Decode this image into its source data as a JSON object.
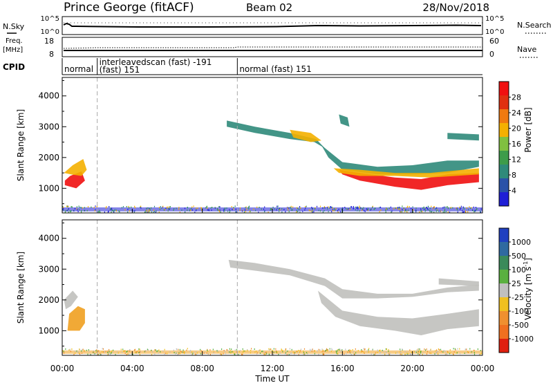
{
  "header": {
    "station": "Prince George (fitACF)",
    "beam": "Beam 02",
    "date": "28/Nov/2018"
  },
  "summary_panels": {
    "nsky_label": "N.Sky",
    "nsky_ticks": [
      "10^5",
      "10^0"
    ],
    "nsearch_label": "N.Search",
    "freq_label": "Freq.",
    "freq_unit": "[MHz]",
    "freq_ticks": [
      "18",
      "8"
    ],
    "nave_label": "Nave",
    "nave_ticks": [
      "60",
      "0"
    ],
    "cpid_label": "CPID"
  },
  "cpid_segments": [
    {
      "label": "normal",
      "line2": "",
      "start_hour": 0.0,
      "end_hour": 2.0
    },
    {
      "label": "interleavedscan (fast) -191",
      "line2": "(fast) 151",
      "start_hour": 2.0,
      "end_hour": 10.0
    },
    {
      "label": "normal (fast) 151",
      "line2": "",
      "start_hour": 10.0,
      "end_hour": 24.0
    }
  ],
  "x_axis": {
    "label": "Time UT",
    "ticks": [
      "00:00",
      "04:00",
      "08:00",
      "12:00",
      "16:00",
      "20:00",
      "00:00"
    ],
    "tick_hours": [
      0,
      4,
      8,
      12,
      16,
      20,
      24
    ]
  },
  "y_axis": {
    "label": "Slant Range [km]",
    "ticks": [
      "1000",
      "2000",
      "3000",
      "4000"
    ],
    "tick_values": [
      1000,
      2000,
      3000,
      4000
    ]
  },
  "power_colorbar": {
    "label": "Power [dB]",
    "ticks": [
      "4",
      "8",
      "12",
      "16",
      "20",
      "24",
      "28"
    ],
    "colors": [
      "#1f1fd6",
      "#2a52a8",
      "#2f8a7a",
      "#3d9c4a",
      "#80c040",
      "#f4b000",
      "#f07a10",
      "#e03010",
      "#f01010"
    ]
  },
  "velocity_colorbar": {
    "label": "Velocity [m s",
    "label_sup": "-1",
    "label_end": "]",
    "ticks": [
      "1000",
      "500",
      "100",
      "25",
      "-25",
      "-100",
      "-500",
      "-1000"
    ],
    "colors": [
      "#2040c0",
      "#2f6aa0",
      "#3a8a5a",
      "#5ab040",
      "#c0c0c0",
      "#f0c020",
      "#f09030",
      "#f07020",
      "#e02010"
    ]
  },
  "colors": {
    "ground_scatter": "#c0c0bc",
    "power_high": "#f01010",
    "power_mid": "#f4b000",
    "power_low": "#2f8a7a",
    "power_lowest": "#1f1fd6",
    "vel_negative": "#f0a020"
  },
  "chart_data": [
    {
      "type": "heatmap",
      "title": "",
      "xlabel": "",
      "ylabel": "Slant Range [km]",
      "xlim_hours": [
        0,
        24
      ],
      "ylim_km": [
        200,
        4600
      ],
      "value": "Power [dB]",
      "regions": [
        {
          "kind": "poly",
          "color": "power_high",
          "points": [
            [
              0.15,
              1100
            ],
            [
              0.8,
              1000
            ],
            [
              1.3,
              1250
            ],
            [
              1.1,
              1550
            ],
            [
              0.45,
              1400
            ],
            [
              0.15,
              1250
            ]
          ]
        },
        {
          "kind": "poly",
          "color": "power_mid",
          "points": [
            [
              0.1,
              1500
            ],
            [
              0.6,
              1750
            ],
            [
              1.2,
              1950
            ],
            [
              1.4,
              1600
            ],
            [
              1.1,
              1400
            ],
            [
              0.5,
              1450
            ]
          ]
        },
        {
          "kind": "poly",
          "color": "power_low",
          "points": [
            [
              9.4,
              3200
            ],
            [
              11,
              3000
            ],
            [
              13,
              2800
            ],
            [
              14.5,
              2600
            ],
            [
              15,
              2300
            ],
            [
              14.4,
              2500
            ],
            [
              13,
              2600
            ],
            [
              11,
              2800
            ],
            [
              9.4,
              3000
            ]
          ]
        },
        {
          "kind": "poly",
          "color": "power_mid",
          "points": [
            [
              13,
              2900
            ],
            [
              14.2,
              2800
            ],
            [
              14.8,
              2550
            ],
            [
              14.2,
              2500
            ],
            [
              13.2,
              2650
            ]
          ]
        },
        {
          "kind": "poly",
          "color": "power_low",
          "points": [
            [
              14.8,
              2400
            ],
            [
              16,
              1850
            ],
            [
              18,
              1700
            ],
            [
              20,
              1750
            ],
            [
              22,
              1900
            ],
            [
              23.8,
              1900
            ],
            [
              23.8,
              1700
            ],
            [
              22,
              1500
            ],
            [
              20,
              1450
            ],
            [
              18,
              1450
            ],
            [
              16,
              1600
            ],
            [
              15.2,
              2000
            ]
          ]
        },
        {
          "kind": "poly",
          "color": "power_high",
          "points": [
            [
              15.8,
              1600
            ],
            [
              17,
              1500
            ],
            [
              19,
              1350
            ],
            [
              20.5,
              1300
            ],
            [
              22,
              1450
            ],
            [
              23.8,
              1500
            ],
            [
              23.8,
              1200
            ],
            [
              22,
              1100
            ],
            [
              20.5,
              950
            ],
            [
              19,
              1050
            ],
            [
              17,
              1250
            ],
            [
              16,
              1450
            ]
          ]
        },
        {
          "kind": "poly",
          "color": "power_mid",
          "points": [
            [
              15.5,
              1650
            ],
            [
              17,
              1600
            ],
            [
              19,
              1500
            ],
            [
              21,
              1500
            ],
            [
              23.8,
              1650
            ],
            [
              23.8,
              1450
            ],
            [
              21,
              1350
            ],
            [
              19,
              1400
            ],
            [
              17,
              1400
            ],
            [
              15.8,
              1500
            ]
          ]
        },
        {
          "kind": "poly",
          "color": "power_low",
          "points": [
            [
              22,
              2800
            ],
            [
              23.8,
              2750
            ],
            [
              23.8,
              2550
            ],
            [
              22,
              2600
            ]
          ]
        },
        {
          "kind": "poly",
          "color": "power_low",
          "points": [
            [
              15.8,
              3400
            ],
            [
              16.3,
              3300
            ],
            [
              16.4,
              3000
            ],
            [
              15.9,
              3100
            ]
          ]
        },
        {
          "kind": "band",
          "color": "power_lowest",
          "points": [
            [
              0,
              250
            ],
            [
              24,
              250
            ],
            [
              24,
              380
            ],
            [
              0,
              380
            ]
          ]
        }
      ]
    },
    {
      "type": "heatmap",
      "title": "",
      "xlabel": "Time UT",
      "ylabel": "Slant Range [km]",
      "xlim_hours": [
        0,
        24
      ],
      "ylim_km": [
        200,
        4600
      ],
      "value": "Velocity [m s-1]",
      "regions": [
        {
          "kind": "poly",
          "color": "ground_scatter",
          "points": [
            [
              9.5,
              3300
            ],
            [
              11,
              3200
            ],
            [
              13,
              3000
            ],
            [
              15,
              2700
            ],
            [
              16,
              2350
            ],
            [
              18,
              2200
            ],
            [
              20,
              2200
            ],
            [
              22,
              2400
            ],
            [
              23.8,
              2500
            ],
            [
              23.8,
              2300
            ],
            [
              22,
              2250
            ],
            [
              20,
              2100
            ],
            [
              18,
              2050
            ],
            [
              16,
              2050
            ],
            [
              15,
              2450
            ],
            [
              13,
              2800
            ],
            [
              11,
              2950
            ],
            [
              9.6,
              3050
            ]
          ]
        },
        {
          "kind": "poly",
          "color": "ground_scatter",
          "points": [
            [
              14.6,
              2300
            ],
            [
              16,
              1650
            ],
            [
              18,
              1450
            ],
            [
              20,
              1400
            ],
            [
              22,
              1550
            ],
            [
              23.8,
              1700
            ],
            [
              23.8,
              1150
            ],
            [
              22,
              1050
            ],
            [
              20.5,
              850
            ],
            [
              19,
              1000
            ],
            [
              17,
              1150
            ],
            [
              15.6,
              1450
            ],
            [
              14.8,
              1900
            ]
          ]
        },
        {
          "kind": "poly",
          "color": "ground_scatter",
          "points": [
            [
              21.5,
              2700
            ],
            [
              23.8,
              2600
            ],
            [
              23.8,
              2450
            ],
            [
              21.5,
              2500
            ]
          ]
        },
        {
          "kind": "poly",
          "color": "ground_scatter",
          "points": [
            [
              0.1,
              2000
            ],
            [
              0.6,
              2300
            ],
            [
              0.9,
              2100
            ],
            [
              0.5,
              1800
            ],
            [
              0.2,
              1700
            ]
          ]
        },
        {
          "kind": "poly",
          "color": "vel_negative",
          "points": [
            [
              0.3,
              1000
            ],
            [
              1.0,
              1000
            ],
            [
              1.3,
              1250
            ],
            [
              1.3,
              1700
            ],
            [
              0.9,
              1800
            ],
            [
              0.4,
              1550
            ]
          ]
        },
        {
          "kind": "band",
          "color": "vel_negative",
          "points": [
            [
              0,
              250
            ],
            [
              24,
              250
            ],
            [
              24,
              360
            ],
            [
              0,
              360
            ]
          ]
        }
      ]
    }
  ]
}
